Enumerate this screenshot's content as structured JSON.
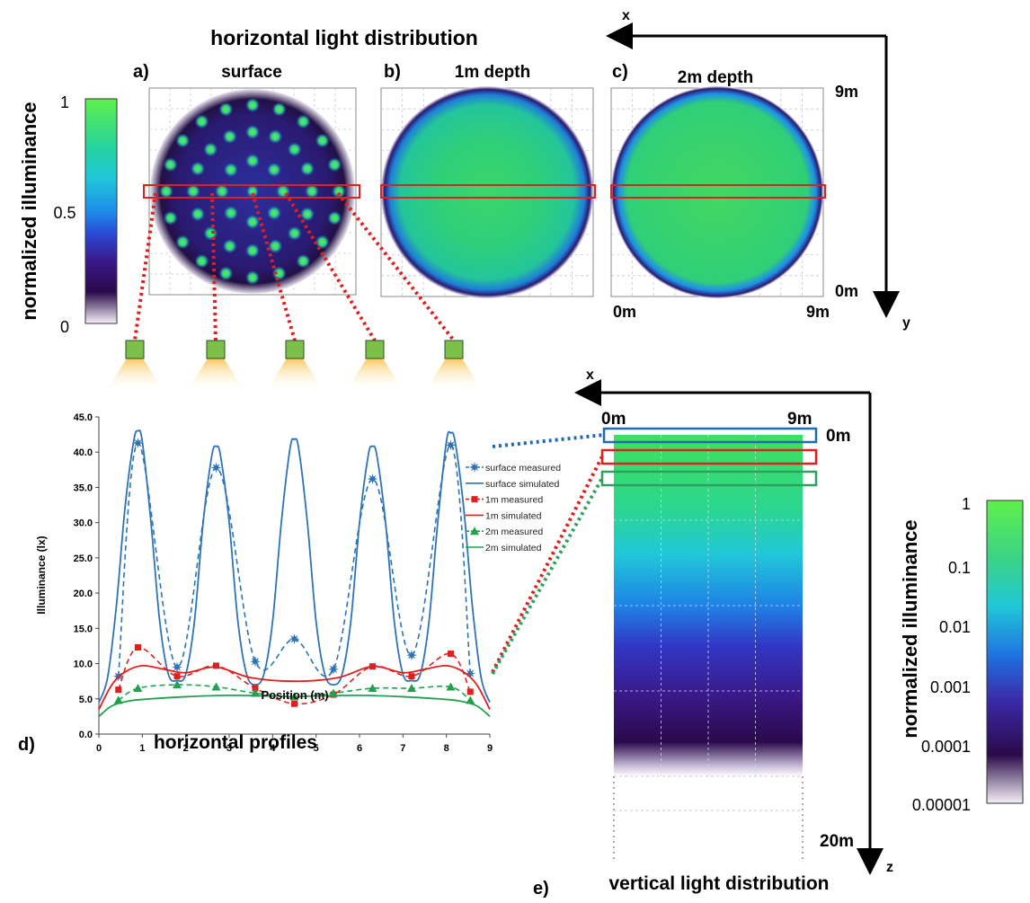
{
  "colors": {
    "scale": [
      "#f4f0f6",
      "#2a0a4a",
      "#3a1a8a",
      "#2a4ad6",
      "#1f8ee8",
      "#21c7d8",
      "#26d3a0",
      "#3ee05a",
      "#5ef04a"
    ],
    "box_red": "#e02020",
    "box_blue": "#1f6ab0",
    "box_green": "#2ea060",
    "series_blue": "#2e74b5",
    "series_red": "#e02020",
    "series_green": "#22a050"
  },
  "top": {
    "title": "horizontal light distribution",
    "colorbar": {
      "ylabel": "normalized illuminance",
      "ticks": [
        "1",
        "0.5",
        "0"
      ]
    },
    "panels": [
      {
        "letter": "a)",
        "title": "surface"
      },
      {
        "letter": "b)",
        "title": "1m depth"
      },
      {
        "letter": "c)",
        "title": "2m depth"
      }
    ],
    "axes": {
      "x": "x",
      "y": "y",
      "top_right": "9m",
      "bottom_right": "0m",
      "bottom_left": "0m",
      "bottom_end": "9m"
    },
    "light_count": 5
  },
  "chart_data": {
    "type": "line",
    "title": "horizontal profiles",
    "panel_letter": "d)",
    "xlabel": "Position (m)",
    "ylabel": "Illuminance (lx)",
    "xlim": [
      0,
      9
    ],
    "ylim": [
      0,
      45
    ],
    "x_ticks": [
      "0",
      "1",
      "2",
      "3",
      "4",
      "5",
      "6",
      "7",
      "8",
      "9"
    ],
    "y_ticks": [
      "0.0",
      "5.0",
      "10.0",
      "15.0",
      "20.0",
      "25.0",
      "30.0",
      "35.0",
      "40.0",
      "45.0"
    ],
    "legend_position": "top-right",
    "series": [
      {
        "name": "surface measured",
        "kind": "measured",
        "marker": "star",
        "color": "#2e74b5",
        "x": [
          0.45,
          0.9,
          1.8,
          2.7,
          3.6,
          4.5,
          5.4,
          6.3,
          7.2,
          8.1,
          8.55
        ],
        "y": [
          8.2,
          41.3,
          9.5,
          37.8,
          10.3,
          13.5,
          9.2,
          36.2,
          11.2,
          41.0,
          8.6
        ]
      },
      {
        "name": "surface simulated",
        "kind": "simulated",
        "color": "#2e74b5",
        "x": [
          0,
          0.2,
          0.4,
          0.6,
          0.8,
          0.9,
          1.0,
          1.2,
          1.4,
          1.6,
          1.8,
          2.0,
          2.2,
          2.4,
          2.6,
          2.7,
          2.8,
          3.0,
          3.2,
          3.4,
          3.6,
          3.8,
          4.0,
          4.2,
          4.4,
          4.5,
          4.6,
          4.8,
          5.0,
          5.2,
          5.4,
          5.6,
          5.8,
          6.0,
          6.2,
          6.3,
          6.4,
          6.6,
          6.8,
          7.0,
          7.2,
          7.4,
          7.6,
          7.8,
          8.0,
          8.1,
          8.2,
          8.4,
          8.6,
          8.8,
          9.0
        ],
        "y": [
          4.5,
          8.0,
          18.0,
          32.0,
          41.5,
          43.0,
          41.5,
          30.0,
          16.0,
          8.5,
          7.6,
          8.5,
          16.0,
          30.0,
          39.5,
          40.8,
          39.5,
          30.0,
          16.0,
          8.5,
          7.0,
          8.5,
          16.0,
          30.0,
          40.5,
          41.8,
          40.5,
          30.0,
          16.0,
          8.5,
          7.0,
          8.5,
          16.0,
          30.0,
          39.5,
          40.8,
          39.5,
          30.0,
          16.0,
          8.5,
          7.6,
          8.5,
          16.0,
          30.0,
          41.5,
          42.7,
          41.5,
          32.0,
          18.0,
          8.0,
          4.5
        ]
      },
      {
        "name": "1m measured",
        "kind": "measured",
        "marker": "square",
        "color": "#e02020",
        "x": [
          0.45,
          0.9,
          1.8,
          2.7,
          3.6,
          4.5,
          5.4,
          6.3,
          7.2,
          8.1,
          8.55
        ],
        "y": [
          6.3,
          12.3,
          8.2,
          9.7,
          6.5,
          4.3,
          5.6,
          9.6,
          8.2,
          11.4,
          6.0
        ]
      },
      {
        "name": "1m simulated",
        "kind": "simulated",
        "color": "#e02020",
        "x": [
          0,
          0.3,
          0.6,
          1.0,
          1.5,
          2.0,
          2.7,
          3.5,
          4.5,
          5.5,
          6.3,
          7.0,
          7.5,
          8.0,
          8.4,
          8.7,
          9.0
        ],
        "y": [
          3.5,
          7.0,
          8.8,
          9.7,
          9.2,
          8.7,
          9.5,
          8.0,
          7.5,
          8.0,
          9.6,
          8.7,
          9.2,
          9.7,
          8.8,
          7.0,
          3.5
        ]
      },
      {
        "name": "2m measured",
        "kind": "measured",
        "marker": "triangle",
        "color": "#22a050",
        "x": [
          0.45,
          0.9,
          1.8,
          2.7,
          3.6,
          4.5,
          5.4,
          6.3,
          7.2,
          8.1,
          8.55
        ],
        "y": [
          4.8,
          6.5,
          7.0,
          6.7,
          5.8,
          5.3,
          5.8,
          6.5,
          6.5,
          6.7,
          4.8
        ]
      },
      {
        "name": "2m simulated",
        "kind": "simulated",
        "color": "#22a050",
        "x": [
          0,
          0.3,
          0.7,
          1.2,
          2.0,
          3.0,
          4.0,
          4.5,
          5.0,
          6.0,
          7.0,
          7.8,
          8.3,
          8.7,
          9.0
        ],
        "y": [
          2.5,
          4.0,
          4.7,
          5.0,
          5.3,
          5.5,
          5.4,
          5.3,
          5.4,
          5.5,
          5.3,
          5.0,
          4.7,
          4.0,
          2.5
        ]
      }
    ]
  },
  "bottom": {
    "panel_letter": "e)",
    "title": "vertical light distribution",
    "axes": {
      "x": "x",
      "z": "z",
      "left_top": "0m",
      "right_top": "9m",
      "depth_top": "0m",
      "depth_bottom": "20m"
    },
    "colorbar": {
      "ylabel": "normalized illuminance",
      "ticks": [
        "1",
        "0.1",
        "0.01",
        "0.001",
        "0.0001",
        "0.00001"
      ]
    }
  }
}
